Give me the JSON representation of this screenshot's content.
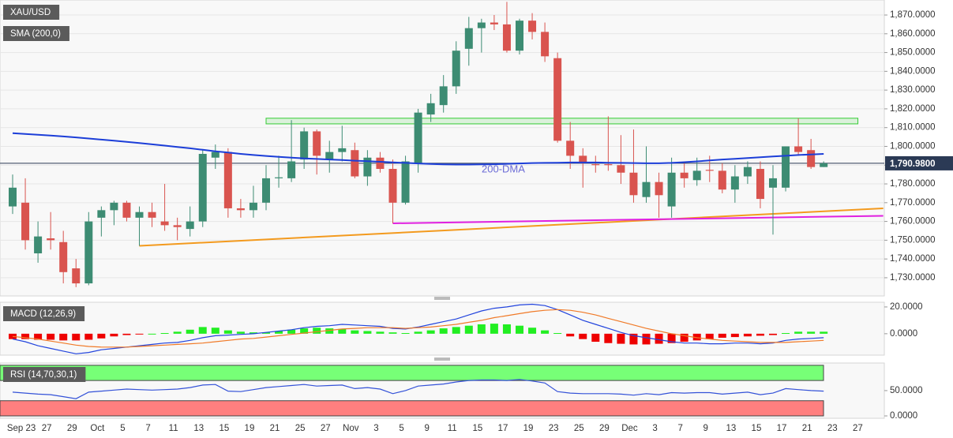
{
  "chart_data": [
    {
      "type": "candlestick",
      "title": "XAU/USD",
      "categories": [
        null,
        "Sep 23",
        null,
        "27",
        null,
        "29",
        null,
        "Oct",
        null,
        "5",
        null,
        "7",
        null,
        "11",
        null,
        "13",
        null,
        "15",
        null,
        "19",
        null,
        "21",
        null,
        "25",
        null,
        "27",
        null,
        "Nov",
        null,
        "3",
        null,
        "5",
        null,
        "9",
        null,
        "11",
        null,
        "15",
        null,
        "17",
        null,
        "19",
        null,
        "23",
        null,
        "25",
        null,
        "29",
        null,
        "Dec",
        null,
        "3",
        null,
        "7",
        null,
        "9",
        null,
        "13",
        null,
        "15",
        null,
        "17",
        null,
        "21",
        null,
        "23",
        null,
        "27"
      ],
      "ohlc": [
        [
          1768,
          1785,
          1764,
          1778
        ],
        [
          1770,
          1783,
          1745,
          1750
        ],
        [
          1743,
          1760,
          1738,
          1752
        ],
        [
          1751,
          1765,
          1745,
          1750
        ],
        [
          1749,
          1755,
          1727,
          1733
        ],
        [
          1735,
          1740,
          1725,
          1727
        ],
        [
          1727,
          1765,
          1726,
          1760
        ],
        [
          1762,
          1768,
          1752,
          1766
        ],
        [
          1766,
          1771,
          1758,
          1770
        ],
        [
          1770,
          1771,
          1760,
          1762
        ],
        [
          1762,
          1768,
          1747,
          1765
        ],
        [
          1765,
          1770,
          1757,
          1762
        ],
        [
          1760,
          1780,
          1755,
          1758
        ],
        [
          1758,
          1762,
          1750,
          1757
        ],
        [
          1756,
          1768,
          1752,
          1760
        ],
        [
          1760,
          1798,
          1757,
          1796
        ],
        [
          1794,
          1801,
          1788,
          1797
        ],
        [
          1797,
          1799,
          1762,
          1767
        ],
        [
          1767,
          1772,
          1762,
          1766
        ],
        [
          1766,
          1779,
          1762,
          1770
        ],
        [
          1770,
          1790,
          1766,
          1783
        ],
        [
          1783,
          1795,
          1778,
          1783.5
        ],
        [
          1783,
          1814,
          1781,
          1792
        ],
        [
          1793,
          1810,
          1788,
          1808
        ],
        [
          1808,
          1809,
          1785,
          1795
        ],
        [
          1793,
          1803,
          1786,
          1797
        ],
        [
          1797,
          1811,
          1792,
          1799
        ],
        [
          1798,
          1802,
          1783,
          1784
        ],
        [
          1784,
          1798,
          1779,
          1794
        ],
        [
          1794,
          1797,
          1786,
          1788
        ],
        [
          1788,
          1793,
          1759,
          1770
        ],
        [
          1770,
          1795,
          1769,
          1792
        ],
        [
          1791,
          1820,
          1786,
          1818
        ],
        [
          1817,
          1828,
          1813,
          1823
        ],
        [
          1822,
          1838,
          1818,
          1832
        ],
        [
          1832,
          1856,
          1828,
          1851
        ],
        [
          1852,
          1869,
          1843,
          1863
        ],
        [
          1863,
          1868,
          1850,
          1866
        ],
        [
          1866,
          1870,
          1862,
          1865
        ],
        [
          1865,
          1877,
          1850,
          1851
        ],
        [
          1851,
          1868,
          1849,
          1867
        ],
        [
          1867,
          1871,
          1857,
          1861
        ],
        [
          1861,
          1866,
          1845,
          1848
        ],
        [
          1847,
          1850,
          1802,
          1803
        ],
        [
          1803,
          1813,
          1788,
          1795
        ],
        [
          1795,
          1799,
          1778,
          1791
        ],
        [
          1790.5,
          1795,
          1786,
          1790
        ],
        [
          1790.5,
          1816,
          1787,
          1790
        ],
        [
          1790,
          1806,
          1780,
          1786
        ],
        [
          1786,
          1809,
          1770,
          1774
        ],
        [
          1773,
          1800,
          1770,
          1781
        ],
        [
          1781,
          1786,
          1762,
          1774
        ],
        [
          1768,
          1794,
          1762,
          1786
        ],
        [
          1786,
          1791,
          1778,
          1783
        ],
        [
          1782,
          1794,
          1779,
          1787
        ],
        [
          1787.5,
          1795,
          1781,
          1787
        ],
        [
          1787,
          1791,
          1775,
          1777
        ],
        [
          1777,
          1790,
          1770,
          1784
        ],
        [
          1784,
          1792,
          1780,
          1789
        ],
        [
          1788,
          1792,
          1767,
          1772
        ],
        [
          1778,
          1790,
          1753,
          1783
        ],
        [
          1778,
          1800,
          1776,
          1800
        ],
        [
          1800,
          1815,
          1795,
          1797
        ],
        [
          1798,
          1804,
          1788,
          1789
        ],
        [
          1789,
          1792,
          1789,
          1791
        ],
        null,
        null,
        null
      ],
      "up_color": "#3d8c73",
      "down_color": "#d9544f",
      "series": [
        {
          "name": "SMA (200,0)",
          "color": "#1c3ed8",
          "values": [
            1807,
            1806.6,
            1806.2,
            1805.8,
            1805.3,
            1804.8,
            1804.2,
            1803.6,
            1803,
            1802.4,
            1801.8,
            1801.1,
            1800.4,
            1799.7,
            1799,
            1798.2,
            1797.4,
            1796.7,
            1796,
            1795.4,
            1794.9,
            1794.4,
            1794,
            1793.6,
            1793.3,
            1793,
            1792.7,
            1792.4,
            1792.1,
            1791.8,
            1791.5,
            1791.2,
            1790.9,
            1790.6,
            1790.4,
            1790.3,
            1790.3,
            1790.4,
            1790.5,
            1790.7,
            1790.9,
            1791.1,
            1791.2,
            1791.3,
            1791.4,
            1791.4,
            1791.4,
            1791.3,
            1791.2,
            1791.1,
            1791,
            1791,
            1791.2,
            1791.6,
            1792,
            1792.5,
            1793,
            1793.4,
            1793.8,
            1794.2,
            1794.6,
            1795,
            1795.4,
            1795.7,
            1796,
            null,
            null,
            null
          ]
        }
      ],
      "annotation": "200-DMA",
      "last_price": {
        "value": 1790.98,
        "label": "1,790.9800"
      },
      "zone": {
        "x": [
          20,
          66.7
        ],
        "ylim": [
          1812,
          1815
        ],
        "color": "#33cc33"
      },
      "trendlines": [
        {
          "x": [
            10,
            68.7
          ],
          "y": [
            1747,
            1767
          ],
          "color": "#f39a1e"
        },
        {
          "x": [
            30,
            68.7
          ],
          "y": [
            1759,
            1763
          ],
          "color": "#e020e0"
        }
      ],
      "ylim": [
        1720.3,
        1878
      ],
      "yticks": [
        {
          "value": 1730,
          "label": "1,730.0000"
        },
        {
          "value": 1740,
          "label": "1,740.0000"
        },
        {
          "value": 1750,
          "label": "1,750.0000"
        },
        {
          "value": 1760,
          "label": "1,760.0000"
        },
        {
          "value": 1770,
          "label": "1,770.0000"
        },
        {
          "value": 1780,
          "label": "1,780.0000"
        },
        {
          "value": 1790,
          "label": "1,790.0000"
        },
        {
          "value": 1800,
          "label": "1,800.0000"
        },
        {
          "value": 1810,
          "label": "1,810.0000"
        },
        {
          "value": 1820,
          "label": "1,820.0000"
        },
        {
          "value": 1830,
          "label": "1,830.0000"
        },
        {
          "value": 1840,
          "label": "1,840.0000"
        },
        {
          "value": 1850,
          "label": "1,850.0000"
        },
        {
          "value": 1860,
          "label": "1,860.0000"
        },
        {
          "value": 1870,
          "label": "1,870.0000"
        }
      ],
      "grid": true
    },
    {
      "type": "macd",
      "title": "MACD (12,26,9)",
      "histogram": {
        "up_color": "#22ee22",
        "down_color": "#ee0000",
        "values": [
          -4,
          -4,
          -4.5,
          -4.5,
          -5,
          -5,
          -4.5,
          -3.5,
          -2,
          -1,
          -0.5,
          0,
          0.5,
          1.5,
          3,
          5,
          4.5,
          2.5,
          1.5,
          1,
          1,
          2,
          3,
          4,
          4.5,
          4,
          3.5,
          2.5,
          2,
          1.5,
          1,
          0.5,
          1.5,
          2.5,
          4,
          5,
          6,
          7,
          7.5,
          7,
          6,
          4.5,
          2.5,
          0.5,
          -2,
          -4,
          -6,
          -7,
          -7.5,
          -8,
          -8,
          -7.5,
          -7,
          -6,
          -5,
          -4,
          -3,
          -2.5,
          -2,
          -1.5,
          -1,
          0.5,
          1.5,
          1.5,
          1.5,
          null,
          null,
          null
        ]
      },
      "series": [
        {
          "color": "#2244dd",
          "values": [
            -4,
            -6,
            -9,
            -11,
            -13,
            -15,
            -14,
            -12,
            -11,
            -10,
            -9,
            -8,
            -7,
            -6.5,
            -5,
            -3,
            -1.5,
            -1,
            -0.5,
            0,
            1,
            2,
            3,
            4.5,
            5.5,
            6,
            7,
            6.5,
            6,
            5.5,
            4,
            3.5,
            5,
            7,
            9,
            11,
            14,
            17,
            19,
            20,
            21.5,
            22,
            21,
            18,
            14,
            10,
            7,
            4,
            1,
            -1.5,
            -3,
            -4.5,
            -6,
            -7,
            -7,
            -7.5,
            -7.5,
            -7,
            -7,
            -7.5,
            -7,
            -5,
            -4,
            -3.5,
            -3,
            null,
            null,
            null
          ]
        },
        {
          "color": "#f07a28",
          "values": [
            -2,
            -3,
            -4,
            -5.5,
            -7,
            -8.5,
            -9.5,
            -10,
            -10,
            -10,
            -9.5,
            -9,
            -8.5,
            -8,
            -7.5,
            -7,
            -6,
            -5,
            -4,
            -3.5,
            -2.5,
            -1.5,
            -0.5,
            0.5,
            1.5,
            2.5,
            3.5,
            4,
            4.5,
            4.5,
            4.5,
            4,
            4.5,
            5,
            6,
            7,
            8.5,
            10,
            12,
            13.5,
            15,
            16.5,
            17.5,
            18,
            17.5,
            16,
            14,
            11.5,
            9,
            6.5,
            4,
            2,
            0,
            -1.5,
            -3,
            -4,
            -5,
            -5.5,
            -6,
            -6.5,
            -6.5,
            -6.5,
            -6,
            -5.5,
            -5,
            null,
            null,
            null
          ]
        }
      ],
      "ylim": [
        -16,
        23.5
      ],
      "yticks": [
        {
          "value": 0,
          "label": "0.0000"
        },
        {
          "value": 20,
          "label": "20.0000"
        }
      ]
    },
    {
      "type": "rsi",
      "title": "RSI (14,70,30,1)",
      "color": "#3452d8",
      "values": [
        47,
        45,
        43,
        42,
        38,
        34,
        47,
        49,
        51,
        53,
        52,
        51,
        52,
        53,
        56,
        61,
        62,
        49,
        48,
        52,
        56,
        58,
        60,
        62,
        59,
        60,
        61,
        54,
        56,
        53,
        44,
        50,
        59,
        61,
        63,
        67,
        70,
        71,
        71,
        70,
        72,
        69,
        65,
        48,
        45,
        44,
        44,
        44,
        43,
        41,
        44,
        42,
        46,
        45,
        46,
        46,
        43,
        45,
        47,
        42,
        45,
        54,
        52,
        50,
        49,
        null,
        null,
        null
      ],
      "bands": [
        {
          "ylim": [
            70,
            100
          ],
          "color": "#77ff77"
        },
        {
          "ylim": [
            0,
            30
          ],
          "color": "#ff7f7f"
        }
      ],
      "ylim": [
        -4.7,
        104.5
      ],
      "yticks": [
        {
          "value": 0,
          "label": "0.0000"
        },
        {
          "value": 50,
          "label": "50.0000"
        }
      ]
    }
  ]
}
